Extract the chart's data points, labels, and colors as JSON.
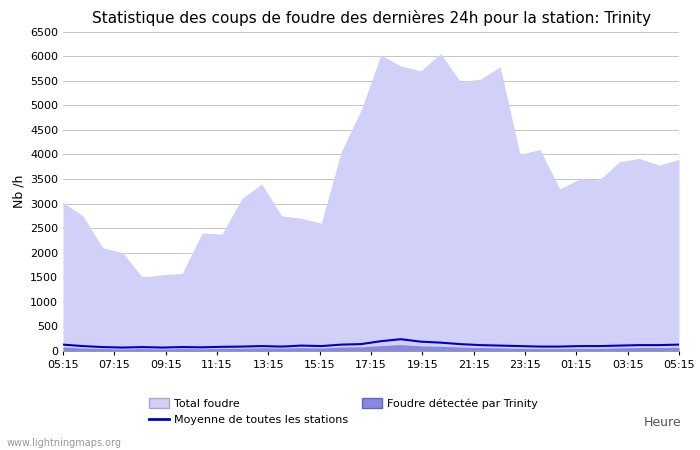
{
  "title": "Statistique des coups de foudre des dernières 24h pour la station: Trinity",
  "xlabel": "Heure",
  "ylabel": "Nb /h",
  "watermark": "www.lightningmaps.org",
  "ylim": [
    0,
    6500
  ],
  "yticks": [
    0,
    500,
    1000,
    1500,
    2000,
    2500,
    3000,
    3500,
    4000,
    4500,
    5000,
    5500,
    6000,
    6500
  ],
  "xtick_labels": [
    "05:15",
    "07:15",
    "09:15",
    "11:15",
    "13:15",
    "15:15",
    "17:15",
    "19:15",
    "21:15",
    "23:15",
    "01:15",
    "03:15",
    "05:15"
  ],
  "legend": {
    "total_foudre_label": "Total foudre",
    "total_foudre_color": "#d0d0f8",
    "moyenne_label": "Moyenne de toutes les stations",
    "moyenne_color": "#0000cc",
    "trinity_label": "Foudre détectée par Trinity",
    "trinity_color": "#8888dd"
  },
  "total_foudre": [
    3020,
    2750,
    2100,
    2000,
    1500,
    1550,
    1580,
    2400,
    2380,
    3100,
    3400,
    2750,
    2700,
    2600,
    4050,
    4900,
    6020,
    5800,
    5700,
    6050,
    5480,
    5530,
    5780,
    4000,
    4100,
    3300,
    3500,
    3480,
    3850,
    3920,
    3780,
    3900
  ],
  "moyenne": [
    130,
    100,
    80,
    70,
    80,
    70,
    80,
    75,
    85,
    90,
    100,
    90,
    110,
    100,
    130,
    140,
    200,
    240,
    190,
    170,
    140,
    120,
    110,
    100,
    90,
    90,
    100,
    100,
    110,
    120,
    120,
    130
  ],
  "trinity": [
    80,
    60,
    50,
    40,
    50,
    40,
    50,
    45,
    55,
    55,
    65,
    60,
    70,
    60,
    80,
    85,
    110,
    130,
    105,
    95,
    80,
    70,
    65,
    55,
    50,
    50,
    55,
    55,
    65,
    70,
    70,
    75
  ],
  "background_color": "#ffffff",
  "plot_bg_color": "#ffffff",
  "grid_color": "#bbbbbb",
  "title_fontsize": 11,
  "tick_fontsize": 8,
  "label_fontsize": 9
}
